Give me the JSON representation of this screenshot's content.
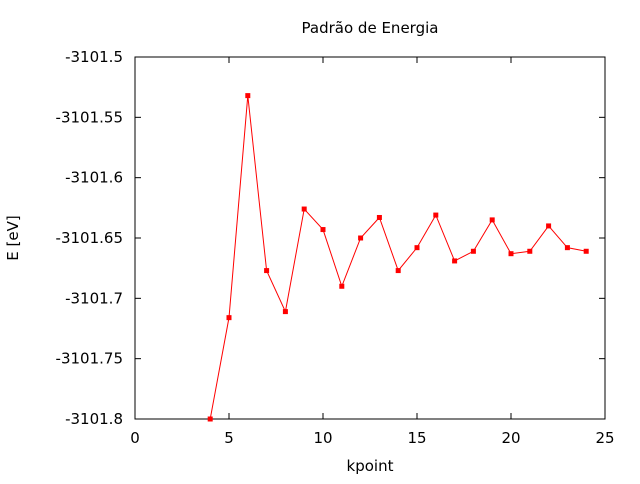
{
  "chart_data": {
    "type": "line",
    "title": "Padrão de Energia",
    "xlabel": "kpoint",
    "ylabel": "E [eV]",
    "xlim": [
      0,
      25
    ],
    "ylim": [
      -3101.8,
      -3101.5
    ],
    "xticks": [
      0,
      5,
      10,
      15,
      20,
      25
    ],
    "xtick_labels": [
      "0",
      "5",
      "10",
      "15",
      "20",
      "25"
    ],
    "yticks": [
      -3101.5,
      -3101.55,
      -3101.6,
      -3101.65,
      -3101.7,
      -3101.75,
      -3101.8
    ],
    "ytick_labels": [
      "-3101.5",
      "-3101.55",
      "-3101.6",
      "-3101.65",
      "-3101.7",
      "-3101.75",
      "-3101.8"
    ],
    "grid": false,
    "legend": "none",
    "series": [
      {
        "color": "#ff0000",
        "marker": "square",
        "x": [
          4,
          5,
          6,
          7,
          8,
          9,
          10,
          11,
          12,
          13,
          14,
          15,
          16,
          17,
          18,
          19,
          20,
          21,
          22,
          23,
          24
        ],
        "y": [
          -3101.8,
          -3101.716,
          -3101.532,
          -3101.677,
          -3101.711,
          -3101.626,
          -3101.643,
          -3101.69,
          -3101.65,
          -3101.633,
          -3101.677,
          -3101.658,
          -3101.631,
          -3101.669,
          -3101.661,
          -3101.635,
          -3101.663,
          -3101.661,
          -3101.64,
          -3101.658,
          -3101.661
        ]
      }
    ]
  }
}
